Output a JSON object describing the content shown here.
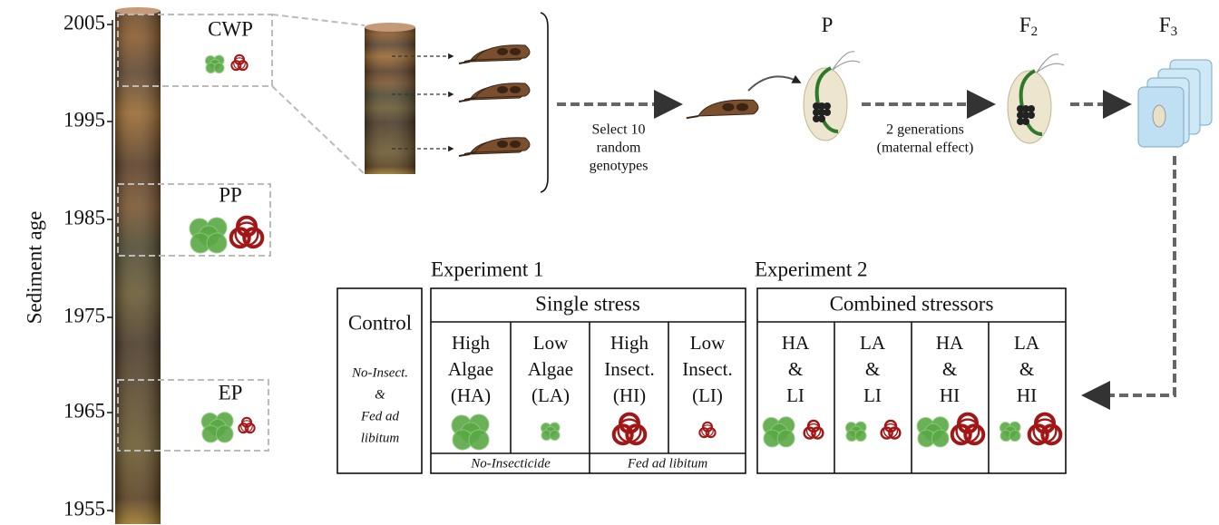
{
  "axis": {
    "label": "Sediment age",
    "ticks": [
      "2005",
      "1995",
      "1985",
      "1975",
      "1965",
      "1955"
    ]
  },
  "periods": [
    "CWP",
    "PP",
    "EP"
  ],
  "generations": [
    {
      "name": "P"
    },
    {
      "name": "F",
      "sub": "2"
    },
    {
      "name": "F",
      "sub": "3"
    }
  ],
  "selection_note": [
    "Select 10",
    "random",
    "genotypes"
  ],
  "generation_note": [
    "2 generations",
    "(maternal effect)"
  ],
  "control": {
    "title": "Control",
    "note": [
      "No-Insect.",
      "&",
      "Fed ad",
      "libitum"
    ]
  },
  "experiments": [
    {
      "title": "Experiment 1",
      "header": "Single stress",
      "columns": [
        [
          "High",
          "Algae",
          "(HA)"
        ],
        [
          "Low",
          "Algae",
          "(LA)"
        ],
        [
          "High",
          "Insect.",
          "(HI)"
        ],
        [
          "Low",
          "Insect.",
          "(LI)"
        ]
      ],
      "footers": [
        "No-Insecticide",
        "Fed ad libitum"
      ]
    },
    {
      "title": "Experiment 2",
      "header": "Combined stressors",
      "columns": [
        [
          "HA",
          "&",
          "LI"
        ],
        [
          "LA",
          "&",
          "LI"
        ],
        [
          "HA",
          "&",
          "HI"
        ],
        [
          "LA",
          "&",
          "HI"
        ]
      ]
    }
  ]
}
